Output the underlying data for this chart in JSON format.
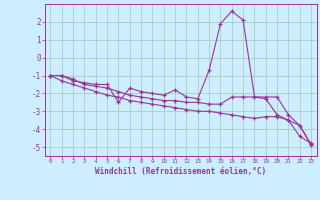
{
  "title": "",
  "xlabel": "Windchill (Refroidissement éolien,°C)",
  "background_color": "#cceeff",
  "grid_color": "#aaccbb",
  "line_color": "#993399",
  "x_hours": [
    0,
    1,
    2,
    3,
    4,
    5,
    6,
    7,
    8,
    9,
    10,
    11,
    12,
    13,
    14,
    15,
    16,
    17,
    18,
    19,
    20,
    21,
    22,
    23
  ],
  "series1": [
    -1.0,
    -1.0,
    -1.3,
    -1.4,
    -1.5,
    -1.5,
    -2.5,
    -1.7,
    -1.9,
    -2.0,
    -2.1,
    -1.8,
    -2.2,
    -2.3,
    -0.7,
    1.9,
    2.6,
    2.1,
    -2.2,
    -2.2,
    -2.2,
    -3.2,
    -3.8,
    -4.9
  ],
  "series2": [
    -1.0,
    -1.0,
    -1.2,
    -1.5,
    -1.6,
    -1.7,
    -1.9,
    -2.1,
    -2.2,
    -2.3,
    -2.4,
    -2.4,
    -2.5,
    -2.5,
    -2.6,
    -2.6,
    -2.2,
    -2.2,
    -2.2,
    -2.3,
    -3.2,
    -3.5,
    -4.4,
    -4.8
  ],
  "series3": [
    -1.0,
    -1.3,
    -1.5,
    -1.7,
    -1.9,
    -2.1,
    -2.2,
    -2.4,
    -2.5,
    -2.6,
    -2.7,
    -2.8,
    -2.9,
    -3.0,
    -3.0,
    -3.1,
    -3.2,
    -3.3,
    -3.4,
    -3.3,
    -3.3,
    -3.5,
    -3.8,
    -4.85
  ],
  "ylim": [
    -5.5,
    3.0
  ],
  "yticks": [
    -5,
    -4,
    -3,
    -2,
    -1,
    0,
    1,
    2
  ],
  "xlim": [
    -0.5,
    23.5
  ],
  "xticks": [
    0,
    1,
    2,
    3,
    4,
    5,
    6,
    7,
    8,
    9,
    10,
    11,
    12,
    13,
    14,
    15,
    16,
    17,
    18,
    19,
    20,
    21,
    22,
    23
  ]
}
